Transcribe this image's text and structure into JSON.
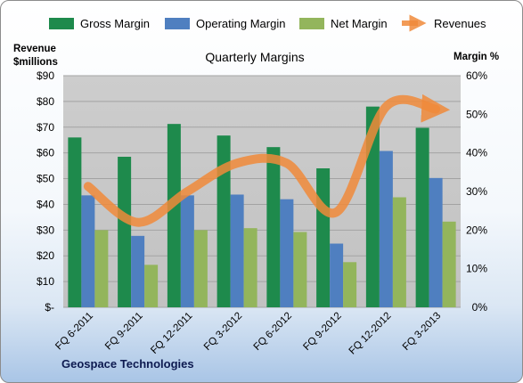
{
  "chart_data": {
    "type": "bar",
    "title": "Quarterly Margins",
    "footer": "Geospace Technologies",
    "left_axis": {
      "label_line1": "Revenue",
      "label_line2": "$millions",
      "ticks": [
        "$-",
        "$10",
        "$20",
        "$30",
        "$40",
        "$50",
        "$60",
        "$70",
        "$80",
        "$90"
      ],
      "range": [
        0,
        90
      ]
    },
    "right_axis": {
      "label": "Margin %",
      "ticks": [
        "0%",
        "10%",
        "20%",
        "30%",
        "40%",
        "50%",
        "60%"
      ],
      "range": [
        0,
        60
      ]
    },
    "categories": [
      "FQ 6-2011",
      "FQ 9-2011",
      "FQ 12-2011",
      "FQ 3-2012",
      "FQ 6-2012",
      "FQ 9-2012",
      "FQ 12-2012",
      "FQ 3-2013"
    ],
    "series": [
      {
        "name": "Gross Margin",
        "kind": "bar",
        "axis": "right",
        "color": "#1e8a4c",
        "values": [
          44,
          39,
          47.5,
          44.5,
          41.5,
          36,
          52,
          46.5
        ]
      },
      {
        "name": "Operating Margin",
        "kind": "bar",
        "axis": "right",
        "color": "#4f7fc0",
        "values": [
          29,
          18.5,
          29,
          29.2,
          28,
          16.5,
          40.5,
          33.5
        ]
      },
      {
        "name": "Net Margin",
        "kind": "bar",
        "axis": "right",
        "color": "#93b55c",
        "values": [
          20,
          11,
          20,
          20.5,
          19.5,
          11.7,
          28.5,
          22.2
        ]
      },
      {
        "name": "Revenues",
        "kind": "line",
        "axis": "left",
        "color": "#f08a3a",
        "values": [
          47,
          33,
          45,
          56,
          56,
          37,
          78,
          77
        ]
      }
    ],
    "grid": true,
    "legend_position": "top"
  }
}
